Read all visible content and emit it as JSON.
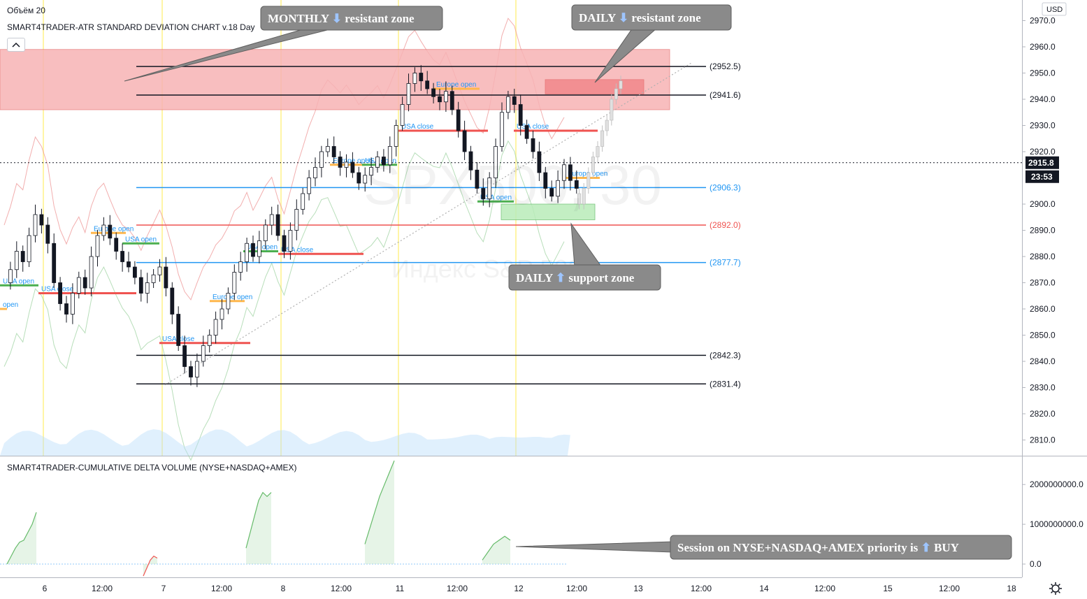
{
  "header": {
    "volume_label": "Объём 20",
    "indicator_title": "SMART4TRADER-ATR STANDARD DEVIATION CHART v.18 Day",
    "collapse_icon": "chevron-up-icon"
  },
  "currency": "USD",
  "watermark": {
    "symbol": "SPX500, 30",
    "subtitle": "Индекс S&P 500"
  },
  "price_axis": {
    "ticks": [
      "2970.0",
      "2960.0",
      "2950.0",
      "2940.0",
      "2930.0",
      "2920.0",
      "2900.0",
      "2890.0",
      "2880.0",
      "2870.0",
      "2860.0",
      "2850.0",
      "2840.0",
      "2830.0",
      "2820.0",
      "2810.0"
    ],
    "current_price": "2915.8",
    "countdown": "23:53"
  },
  "lower_panel": {
    "title": "SMART4TRADER-CUMULATIVE DELTA VOLUME (NYSE+NASDAQ+AMEX)",
    "ticks": [
      "2000000000.0",
      "1000000000.0",
      "0.0"
    ]
  },
  "time_axis": {
    "labels": [
      "6",
      "12:00",
      "7",
      "12:00",
      "8",
      "12:00",
      "11",
      "12:00",
      "12",
      "12:00",
      "13",
      "12:00",
      "14",
      "12:00",
      "15",
      "12:00",
      "18"
    ]
  },
  "callouts": {
    "monthly": {
      "pre": "MONTHLY",
      "post": "resistant zone",
      "arrow": "down-arrow-icon"
    },
    "daily_res": {
      "pre": "DAILY",
      "post": "resistant zone",
      "arrow": "down-arrow-icon"
    },
    "daily_sup": {
      "pre": "DAILY",
      "post": "support zone",
      "arrow": "up-arrow-icon"
    },
    "session": {
      "pre": "Session on NYSE+NASDAQ+AMEX priority is",
      "post": "BUY",
      "arrow": "up-arrow-icon"
    }
  },
  "session_labels": {
    "usa_open": "USA open",
    "usa_close": "USA close",
    "europe_open": "Europe open",
    "open": "open"
  },
  "colors": {
    "resistance_zone": "#f7b3b5",
    "support_zone": "#b9ecb9",
    "level_black": "#131722",
    "level_blue": "#2196f3",
    "level_red": "#ef5350",
    "usa_close_bar": "#ef5350",
    "usa_open_bar": "#4caf50",
    "europe_bar": "#ffb74d",
    "session_vline": "#fff59d",
    "callout_bg": "#8a8a8a",
    "arrow_box": "#2962ff"
  },
  "chart_data": {
    "type": "candlestick",
    "title": "SMART4TRADER-ATR STANDARD DEVIATION CHART v.18 Day",
    "symbol": "SPX500, 30",
    "ylim": [
      2805,
      2975
    ],
    "y_ticks": [
      2970,
      2960,
      2950,
      2940,
      2930,
      2920,
      2910,
      2900,
      2890,
      2880,
      2870,
      2860,
      2850,
      2840,
      2830,
      2820,
      2810
    ],
    "current_price": 2915.8,
    "levels": [
      {
        "value": 2952.5,
        "label": "(2952.5)",
        "color": "black"
      },
      {
        "value": 2941.6,
        "label": "(2941.6)",
        "color": "black"
      },
      {
        "value": 2906.3,
        "label": "(2906.3)",
        "color": "blue"
      },
      {
        "value": 2892.0,
        "label": "(2892.0)",
        "color": "red"
      },
      {
        "value": 2877.7,
        "label": "(2877.7)",
        "color": "blue"
      },
      {
        "value": 2842.3,
        "label": "(2842.3)",
        "color": "black"
      },
      {
        "value": 2831.4,
        "label": "(2831.4)",
        "color": "black"
      }
    ],
    "zones": [
      {
        "name": "monthly-resistance",
        "from": 2936,
        "to": 2959
      },
      {
        "name": "daily-resistance",
        "from": 2942,
        "to": 2947.5
      },
      {
        "name": "daily-support",
        "from": 2894,
        "to": 2900
      }
    ],
    "close_path": [
      2870,
      2875,
      2882,
      2878,
      2888,
      2896,
      2892,
      2885,
      2870,
      2862,
      2858,
      2866,
      2872,
      2868,
      2880,
      2888,
      2892,
      2887,
      2882,
      2878,
      2876,
      2872,
      2866,
      2870,
      2873,
      2876,
      2868,
      2858,
      2846,
      2838,
      2834,
      2840,
      2846,
      2850,
      2856,
      2860,
      2866,
      2874,
      2878,
      2885,
      2880,
      2886,
      2892,
      2896,
      2888,
      2882,
      2890,
      2898,
      2904,
      2910,
      2914,
      2920,
      2922,
      2918,
      2914,
      2916,
      2912,
      2908,
      2911,
      2914,
      2918,
      2915,
      2922,
      2930,
      2938,
      2946,
      2950,
      2947,
      2944,
      2941,
      2939,
      2943,
      2936,
      2928,
      2920,
      2913,
      2906,
      2902,
      2910,
      2922,
      2935,
      2941,
      2938,
      2930,
      2925,
      2920,
      2912,
      2906,
      2903,
      2909,
      2915,
      2909,
      2906
    ],
    "projection_path": [
      2904,
      2900,
      2906,
      2912,
      2918,
      2922,
      2928,
      2932,
      2940,
      2944,
      2947
    ],
    "delta_volume": {
      "ylim": [
        -500000000,
        2600000000
      ],
      "y_ticks": [
        2000000000,
        1000000000,
        0
      ],
      "sessions": [
        [
          0,
          200000000,
          400000000,
          550000000,
          600000000,
          800000000,
          1000000000,
          1300000000
        ],
        [
          -300000000,
          -100000000,
          100000000,
          200000000,
          150000000
        ],
        [
          400000000,
          800000000,
          1200000000,
          1600000000,
          1800000000,
          1700000000,
          1800000000
        ],
        [
          500000000,
          900000000,
          1300000000,
          1700000000,
          2000000000,
          2300000000,
          2600000000
        ],
        [
          100000000,
          300000000,
          500000000,
          600000000,
          700000000,
          600000000
        ]
      ]
    }
  }
}
